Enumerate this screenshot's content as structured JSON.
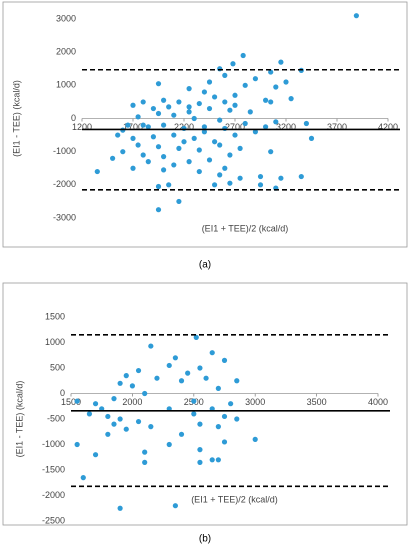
{
  "chart_data": [
    {
      "type": "scatter",
      "label": "(a)",
      "x_label": "(EI1 + TEE)/2 (kcal/d)",
      "y_label": "(EI1 - TEE) (kcal/d)",
      "color": "#2e9bd6",
      "xlim": [
        1200,
        4200
      ],
      "ylim": [
        -3000,
        3000
      ],
      "xticks": [
        1200,
        1700,
        2200,
        2700,
        3200,
        3700,
        4200
      ],
      "yticks": [
        -3000,
        -2000,
        -1000,
        0,
        1000,
        2000,
        3000
      ],
      "hlines": [
        {
          "value": 1470,
          "style": "dashed"
        },
        {
          "value": -330,
          "style": "solid"
        },
        {
          "value": -2150,
          "style": "dashed"
        }
      ],
      "x": [
        3890,
        2780,
        2680,
        3150,
        2550,
        3050,
        3350,
        2900,
        3200,
        2800,
        3100,
        1950,
        2450,
        2600,
        2250,
        2400,
        2700,
        2500,
        3000,
        3250,
        3050,
        2150,
        2000,
        1800,
        2350,
        2600,
        1700,
        1900,
        2050,
        2250,
        2650,
        2450,
        2850,
        2100,
        1950,
        1750,
        2300,
        2550,
        1650,
        1850,
        2000,
        2200,
        2400,
        2600,
        2800,
        3100,
        3400,
        1550,
        1700,
        1900,
        2100,
        2300,
        2500,
        2700,
        2900,
        3450,
        1750,
        1950,
        2150,
        2350,
        2550,
        2750,
        1600,
        1800,
        2000,
        2250,
        2450,
        2650,
        3050,
        1850,
        2100,
        2350,
        2600,
        1500,
        1700,
        2000,
        2550,
        2950,
        3150,
        3350,
        1350,
        2650,
        2500,
        2050,
        1950,
        2950,
        3100,
        2150,
        1950,
        2750,
        2200,
        2400,
        1800,
        1600,
        2250,
        2700,
        3000
      ],
      "y": [
        3100,
        1900,
        1650,
        1700,
        1500,
        1400,
        1450,
        1200,
        1100,
        1000,
        950,
        1050,
        1100,
        1300,
        900,
        800,
        700,
        650,
        550,
        600,
        500,
        500,
        550,
        500,
        450,
        500,
        400,
        300,
        350,
        350,
        250,
        300,
        200,
        100,
        150,
        50,
        0,
        -50,
        -200,
        -250,
        -200,
        -300,
        -250,
        -300,
        -150,
        -100,
        -150,
        -500,
        -600,
        -550,
        -500,
        -600,
        -700,
        -500,
        -400,
        -600,
        -800,
        -850,
        -900,
        -950,
        -800,
        -900,
        -1000,
        -1100,
        -1150,
        -1300,
        -1250,
        -1100,
        -1000,
        -1300,
        -1400,
        -1600,
        -1500,
        -1200,
        -1500,
        -1550,
        -1700,
        -1750,
        -1800,
        -1750,
        -1600,
        -1950,
        -2000,
        -2000,
        -2050,
        -2000,
        -2100,
        -2500,
        -2750,
        -1800,
        -700,
        -400,
        -200,
        -350,
        200,
        400,
        -250
      ]
    },
    {
      "type": "scatter",
      "label": "(b)",
      "x_label": "(EI1 + TEE)/2 (kcal/d)",
      "y_label": "(EI1 - TEE) (kcal/d)",
      "color": "#2e9bd6",
      "xlim": [
        1500,
        4000
      ],
      "ylim": [
        -2500,
        1500
      ],
      "xticks": [
        1500,
        2000,
        2500,
        3000,
        3500,
        4000
      ],
      "yticks": [
        -2500,
        -2000,
        -1500,
        -1000,
        -500,
        0,
        500,
        1000,
        1500
      ],
      "hlines": [
        {
          "value": 1150,
          "style": "dashed"
        },
        {
          "value": -340,
          "style": "solid"
        },
        {
          "value": -1820,
          "style": "dashed"
        }
      ],
      "x": [
        2520,
        2650,
        2750,
        2150,
        2350,
        2300,
        2450,
        2550,
        2600,
        2850,
        2050,
        1950,
        1900,
        2000,
        2200,
        2400,
        2700,
        2100,
        1850,
        1700,
        1550,
        1750,
        1650,
        1800,
        1900,
        2050,
        2300,
        2500,
        2650,
        2800,
        2750,
        1950,
        2150,
        2400,
        2550,
        2700,
        3000,
        1800,
        1700,
        2100,
        2300,
        2550,
        2650,
        2700,
        2750,
        2100,
        1550,
        1600,
        2550,
        1900,
        2350,
        2850,
        1850,
        2500
      ],
      "y": [
        1100,
        800,
        650,
        930,
        700,
        550,
        400,
        500,
        300,
        250,
        450,
        350,
        200,
        150,
        300,
        250,
        100,
        0,
        -100,
        -200,
        -150,
        -300,
        -400,
        -450,
        -500,
        -550,
        -300,
        -400,
        -300,
        -200,
        -450,
        -700,
        -650,
        -800,
        -600,
        -650,
        -900,
        -800,
        -1200,
        -1150,
        -1000,
        -1100,
        -1300,
        -1300,
        -950,
        -1350,
        -1000,
        -1650,
        -1350,
        -2250,
        -2200,
        -500,
        -600,
        -150
      ]
    }
  ]
}
